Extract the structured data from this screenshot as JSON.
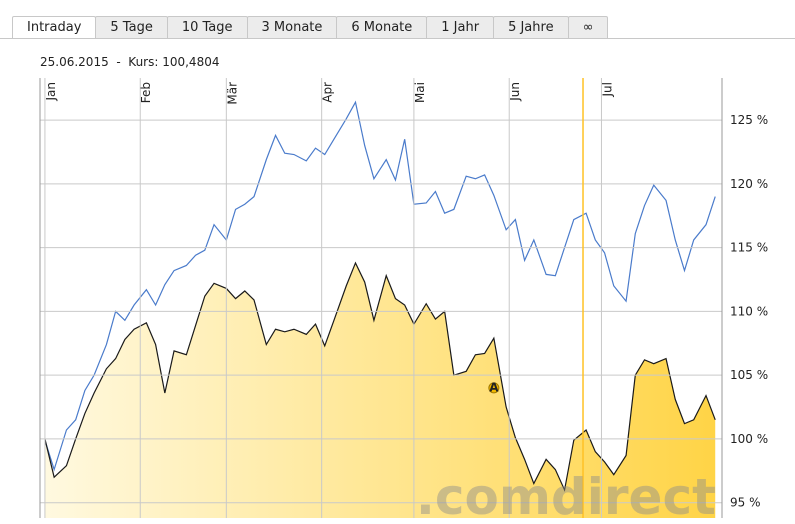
{
  "tabs": [
    "Intraday",
    "5 Tage",
    "10 Tage",
    "3 Monate",
    "6 Monate",
    "1 Jahr",
    "5 Jahre",
    "∞"
  ],
  "active_tab": 0,
  "chart_data": {
    "type": "line",
    "subtitle": "25.06.2015  -  Kurs: 100,4804",
    "watermark": ".comdirect",
    "x": [
      1,
      4,
      8,
      11,
      14,
      17,
      21,
      24,
      27,
      30,
      34,
      37,
      40,
      43,
      47,
      50,
      53,
      56,
      60,
      63,
      66,
      69,
      73,
      76,
      79,
      82,
      86,
      89,
      92,
      95,
      99,
      102,
      105,
      108,
      112,
      115,
      118,
      121,
      125,
      128,
      131,
      134,
      138,
      141,
      144,
      147,
      151,
      154,
      157,
      160,
      164,
      167,
      170,
      173,
      177,
      180,
      183,
      186,
      190,
      193,
      196,
      199,
      203,
      206,
      209,
      212,
      216,
      219
    ],
    "xlim": [
      -0.6,
      221.2
    ],
    "xticks": [
      {
        "value": 1,
        "label": "Jan"
      },
      {
        "value": 32,
        "label": "Feb"
      },
      {
        "value": 60,
        "label": "Mär"
      },
      {
        "value": 91,
        "label": "Apr"
      },
      {
        "value": 121,
        "label": "Mai"
      },
      {
        "value": 152,
        "label": "Jun"
      },
      {
        "value": 182,
        "label": "Jul"
      }
    ],
    "ylim": [
      93.8,
      128.3
    ],
    "yticks": [
      {
        "value": 95,
        "label": "95 %"
      },
      {
        "value": 100,
        "label": "100 %"
      },
      {
        "value": 105,
        "label": "105 %"
      },
      {
        "value": 110,
        "label": "110 %"
      },
      {
        "value": 115,
        "label": "115 %"
      },
      {
        "value": 120,
        "label": "120 %"
      },
      {
        "value": 125,
        "label": "125 %"
      }
    ],
    "grid": true,
    "highlight_x": 176,
    "highlight_color": "#ffc125",
    "series": [
      {
        "color": "#4a7bcb",
        "fill": false,
        "values": [
          99.9,
          97.6,
          100.7,
          101.5,
          103.8,
          105.0,
          107.4,
          110.0,
          109.3,
          110.5,
          111.7,
          110.5,
          112.1,
          113.2,
          113.6,
          114.4,
          114.8,
          116.8,
          115.6,
          118.0,
          118.4,
          119.0,
          121.9,
          123.8,
          122.4,
          122.3,
          121.8,
          122.8,
          122.3,
          123.5,
          125.1,
          126.4,
          123.0,
          120.4,
          121.9,
          120.3,
          123.5,
          118.4,
          118.5,
          119.4,
          117.7,
          118.0,
          120.6,
          120.4,
          120.7,
          119.1,
          116.4,
          117.2,
          114.0,
          115.6,
          112.9,
          112.8,
          115.0,
          117.2,
          117.7,
          115.6,
          114.6,
          112.0,
          110.8,
          116.1,
          118.3,
          119.9,
          118.7,
          115.6,
          113.2,
          115.6,
          116.8,
          119.0
        ]
      },
      {
        "color": "#1a1a1a",
        "fill": true,
        "fill_colors": [
          "#fff9e0",
          "#ffd446"
        ],
        "values": [
          100.0,
          97.0,
          97.9,
          100.0,
          102.0,
          103.6,
          105.5,
          106.3,
          107.8,
          108.6,
          109.1,
          107.4,
          103.6,
          106.9,
          106.6,
          108.9,
          111.2,
          112.2,
          111.8,
          111.0,
          111.6,
          110.9,
          107.4,
          108.6,
          108.4,
          108.6,
          108.2,
          109.0,
          107.3,
          109.3,
          112.0,
          113.8,
          112.3,
          109.3,
          112.8,
          111.0,
          110.5,
          109.0,
          110.6,
          109.4,
          110.0,
          105.0,
          105.3,
          106.6,
          106.7,
          107.9,
          102.5,
          100.1,
          98.4,
          96.5,
          98.4,
          97.6,
          96.0,
          99.9,
          100.7,
          99.0,
          98.2,
          97.2,
          98.7,
          105.0,
          106.2,
          105.9,
          106.3,
          103.1,
          101.2,
          101.5,
          103.4,
          101.5
        ]
      }
    ],
    "annotations": [
      {
        "text": "A",
        "x": 147,
        "y": 104.0,
        "color": "#f0b800"
      }
    ]
  }
}
